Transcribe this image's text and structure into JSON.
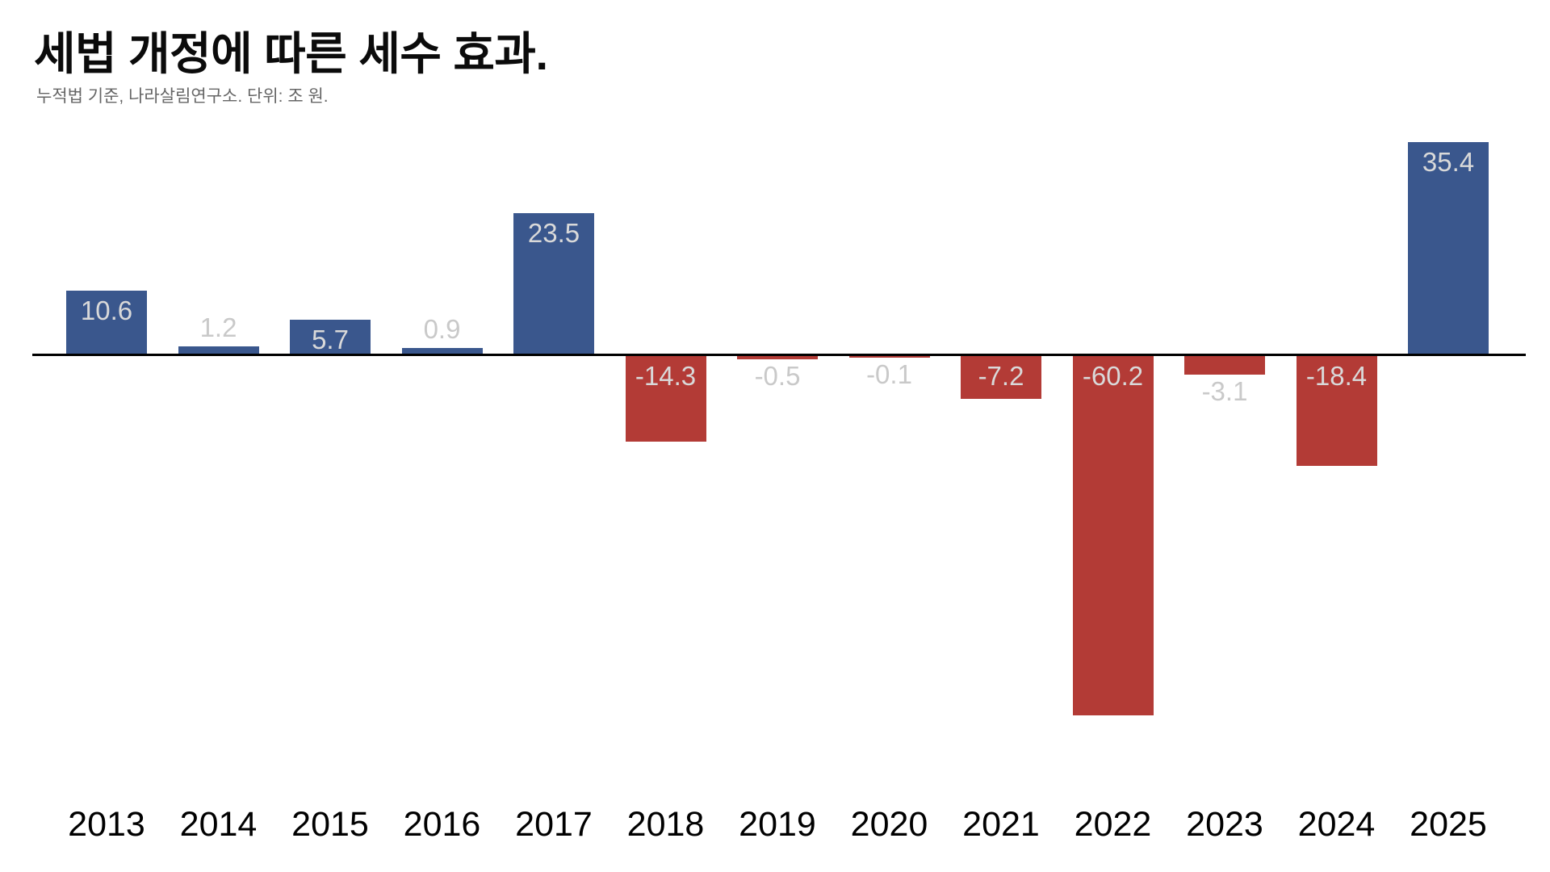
{
  "header": {
    "title": "세법 개정에 따른 세수 효과.",
    "subtitle": "누적법 기준, 나라살림연구소. 단위: 조 원."
  },
  "chart_data": {
    "type": "bar",
    "title": "세법 개정에 따른 세수 효과.",
    "subtitle": "누적법 기준, 나라살림연구소. 단위: 조 원.",
    "unit": "조 원",
    "source": "나라살림연구소",
    "categories": [
      "2013",
      "2014",
      "2015",
      "2016",
      "2017",
      "2018",
      "2019",
      "2020",
      "2021",
      "2022",
      "2023",
      "2024",
      "2025"
    ],
    "values": [
      10.6,
      1.2,
      5.7,
      0.9,
      23.5,
      -14.3,
      -0.5,
      -0.1,
      -7.2,
      -60.2,
      -3.1,
      -18.4,
      35.4
    ],
    "value_labels": [
      "10.6",
      "1.2",
      "5.7",
      "0.9",
      "23.5",
      "-14.3",
      "-0.5",
      "-0.1",
      "-7.2",
      "-60.2",
      "-3.1",
      "-18.4",
      "35.4"
    ],
    "baseline": 0,
    "ylim": [
      -65,
      40
    ],
    "grid": false,
    "legend": false,
    "positive_color": "#3A578D",
    "negative_color": "#B33B36",
    "inside_label_color": "#D9D9D9",
    "outside_label_color": "#C9C9C9",
    "axis_color": "#000000",
    "tick_label_color": "#000000"
  }
}
